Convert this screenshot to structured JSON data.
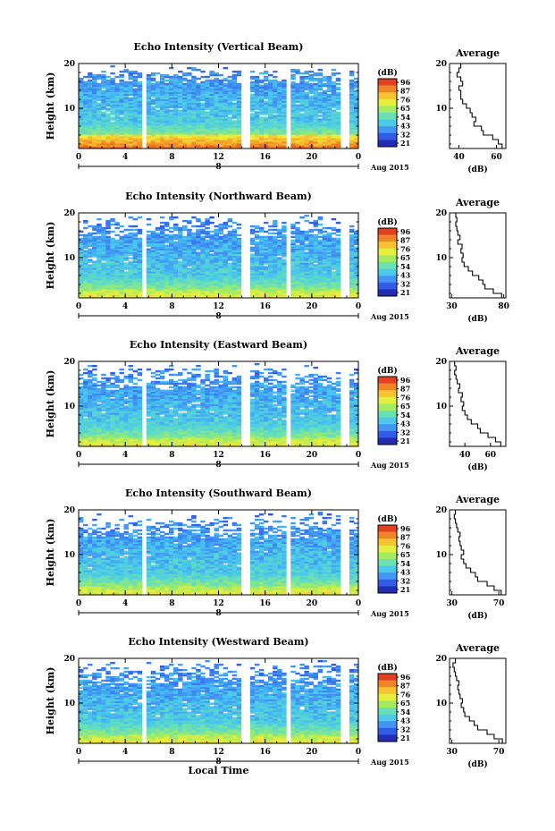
{
  "chart_data": [
    {
      "type": "heatmap",
      "title": "Echo Intensity (Vertical Beam)",
      "ylabel": "Height (km)",
      "xticks": [
        "0",
        "4",
        "8",
        "12",
        "16",
        "20",
        "0"
      ],
      "date_label": "8",
      "date_suffix": "Aug 2015",
      "yticks": [
        "20",
        "10"
      ],
      "xlim": [
        0,
        24
      ],
      "ylim": [
        1,
        20
      ],
      "colorbar_unit": "(dB)",
      "colorbar_ticks": [
        "96",
        "87",
        "76",
        "65",
        "54",
        "43",
        "32",
        "21"
      ],
      "profile": {
        "title": "Average",
        "xlabel": "(dB)",
        "xticks": [
          "40",
          "60"
        ],
        "xlim": [
          35,
          65
        ],
        "yticks": [
          "20",
          "10"
        ],
        "height": [
          1.5,
          2.5,
          3.5,
          4.5,
          5.5,
          6.5,
          7.5,
          8.5,
          9.5,
          10.5,
          11.5,
          12.5,
          13.5,
          14.5,
          15.5,
          16.5,
          17.5,
          18.5,
          19.5
        ],
        "value": [
          63,
          61,
          58,
          53,
          52,
          48,
          49,
          47,
          46,
          44,
          42,
          41,
          41,
          40,
          42,
          41,
          39,
          40,
          41
        ]
      },
      "warm_top_km": 4,
      "dense_top_km": 15.5,
      "gaps_hours": [
        5.6,
        14.3,
        18.0,
        22.8
      ]
    },
    {
      "type": "heatmap",
      "title": "Echo Intensity (Northward Beam)",
      "ylabel": "Height (km)",
      "xticks": [
        "0",
        "4",
        "8",
        "12",
        "16",
        "20",
        "0"
      ],
      "date_label": "8",
      "date_suffix": "Aug 2015",
      "yticks": [
        "20",
        "10"
      ],
      "xlim": [
        0,
        24
      ],
      "ylim": [
        1,
        20
      ],
      "colorbar_unit": "(dB)",
      "colorbar_ticks": [
        "96",
        "87",
        "76",
        "65",
        "54",
        "43",
        "32",
        "21"
      ],
      "profile": {
        "title": "Average",
        "xlabel": "(dB)",
        "xticks": [
          "30",
          "80"
        ],
        "xlim": [
          28,
          82
        ],
        "yticks": [
          "20",
          "10"
        ],
        "height": [
          1.5,
          2.5,
          3.5,
          4.5,
          5.5,
          6.5,
          7.5,
          8.5,
          9.5,
          10.5,
          11.5,
          12.5,
          13.5,
          14.5,
          15.5,
          16.5,
          17.5,
          18.5,
          19.5
        ],
        "value": [
          78,
          70,
          62,
          60,
          56,
          50,
          46,
          42,
          40,
          41,
          39,
          40,
          36,
          38,
          36,
          35,
          34,
          35,
          34
        ]
      },
      "warm_top_km": 3,
      "dense_top_km": 14,
      "gaps_hours": [
        5.6,
        14.3,
        18.0,
        22.8
      ]
    },
    {
      "type": "heatmap",
      "title": "Echo Intensity (Eastward Beam)",
      "ylabel": "Height (km)",
      "xticks": [
        "0",
        "4",
        "8",
        "12",
        "16",
        "20",
        "0"
      ],
      "date_label": "8",
      "date_suffix": "Aug 2015",
      "yticks": [
        "20",
        "10"
      ],
      "xlim": [
        0,
        24
      ],
      "ylim": [
        1,
        20
      ],
      "colorbar_unit": "(dB)",
      "colorbar_ticks": [
        "96",
        "87",
        "76",
        "65",
        "54",
        "43",
        "32",
        "21"
      ],
      "profile": {
        "title": "Average",
        "xlabel": "(dB)",
        "xticks": [
          "40",
          "60"
        ],
        "xlim": [
          28,
          72
        ],
        "yticks": [
          "20",
          "10"
        ],
        "height": [
          1.5,
          2.5,
          3.5,
          4.5,
          5.5,
          6.5,
          7.5,
          8.5,
          9.5,
          10.5,
          11.5,
          12.5,
          13.5,
          14.5,
          15.5,
          16.5,
          17.5,
          18.5,
          19.5
        ],
        "value": [
          68,
          64,
          58,
          52,
          50,
          45,
          42,
          40,
          38,
          39,
          37,
          38,
          35,
          36,
          34,
          33,
          32,
          33,
          32
        ]
      },
      "warm_top_km": 3,
      "dense_top_km": 13.5,
      "gaps_hours": [
        5.6,
        14.3,
        18.0,
        22.8
      ]
    },
    {
      "type": "heatmap",
      "title": "Echo Intensity (Southward Beam)",
      "ylabel": "Height (km)",
      "xticks": [
        "0",
        "4",
        "8",
        "12",
        "16",
        "20",
        "0"
      ],
      "date_label": "8",
      "date_suffix": "Aug 2015",
      "yticks": [
        "20",
        "10"
      ],
      "xlim": [
        0,
        24
      ],
      "ylim": [
        1,
        20
      ],
      "colorbar_unit": "(dB)",
      "colorbar_ticks": [
        "96",
        "87",
        "76",
        "65",
        "54",
        "43",
        "32",
        "21"
      ],
      "profile": {
        "title": "Average",
        "xlabel": "(dB)",
        "xticks": [
          "30",
          "70"
        ],
        "xlim": [
          28,
          76
        ],
        "yticks": [
          "20",
          "10"
        ],
        "height": [
          1.5,
          2.5,
          3.5,
          4.5,
          5.5,
          6.5,
          7.5,
          8.5,
          9.5,
          10.5,
          11.5,
          12.5,
          13.5,
          14.5,
          15.5,
          16.5,
          17.5,
          18.5,
          19.5
        ],
        "value": [
          72,
          66,
          60,
          52,
          50,
          46,
          42,
          40,
          38,
          40,
          38,
          37,
          36,
          37,
          35,
          34,
          33,
          32,
          33
        ]
      },
      "warm_top_km": 3,
      "dense_top_km": 13.5,
      "gaps_hours": [
        5.6,
        14.3,
        18.0,
        22.8
      ]
    },
    {
      "type": "heatmap",
      "title": "Echo Intensity (Westward Beam)",
      "ylabel": "Height (km)",
      "xticks": [
        "0",
        "4",
        "8",
        "12",
        "16",
        "20",
        "0"
      ],
      "date_label": "8",
      "date_suffix": "Aug 2015",
      "xlabel": "Local Time",
      "yticks": [
        "20",
        "10"
      ],
      "xlim": [
        0,
        24
      ],
      "ylim": [
        1,
        20
      ],
      "colorbar_unit": "(dB)",
      "colorbar_ticks": [
        "96",
        "87",
        "76",
        "65",
        "54",
        "43",
        "32",
        "21"
      ],
      "profile": {
        "title": "Average",
        "xlabel": "(dB)",
        "xticks": [
          "30",
          "70"
        ],
        "xlim": [
          28,
          76
        ],
        "yticks": [
          "20",
          "10"
        ],
        "height": [
          1.5,
          2.5,
          3.5,
          4.5,
          5.5,
          6.5,
          7.5,
          8.5,
          9.5,
          10.5,
          11.5,
          12.5,
          13.5,
          14.5,
          15.5,
          16.5,
          17.5,
          18.5,
          19.5
        ],
        "value": [
          73,
          66,
          60,
          52,
          49,
          45,
          41,
          40,
          38,
          39,
          37,
          36,
          35,
          36,
          34,
          33,
          32,
          31,
          33
        ]
      },
      "warm_top_km": 3,
      "dense_top_km": 13.5,
      "gaps_hours": [
        5.6,
        14.3,
        18.0,
        22.8
      ]
    }
  ]
}
